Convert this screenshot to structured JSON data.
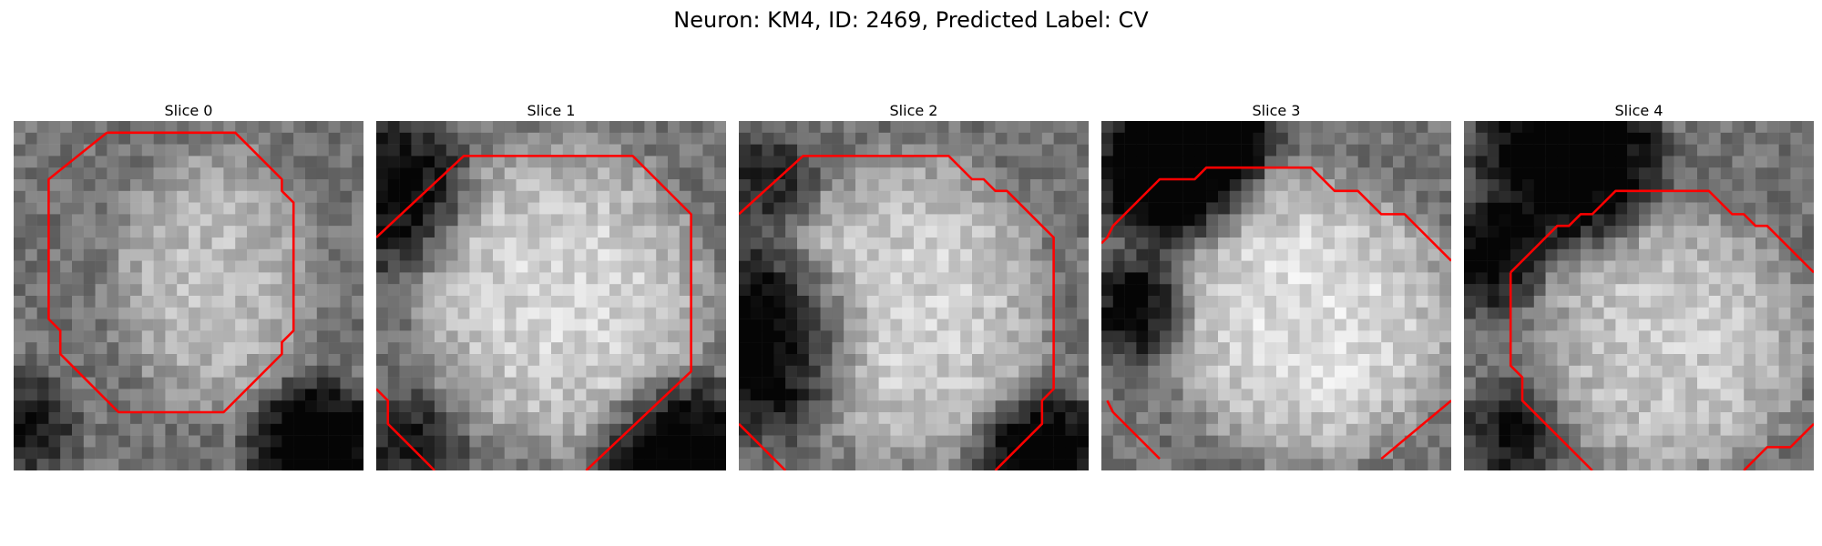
{
  "figure": {
    "title": "Neuron: KM4, ID: 2469, Predicted Label: CV"
  },
  "panels": [
    {
      "title": "Slice 0",
      "blob": {
        "cx": 17.0,
        "cy": 13.5,
        "rx": 10.0,
        "ry": 13.0,
        "bright": 0.74
      },
      "dark": [
        {
          "cx": 26,
          "cy": 28,
          "r": 5,
          "a": 0.6
        },
        {
          "cx": 1,
          "cy": 26,
          "r": 4,
          "a": 0.35
        }
      ],
      "contours": [
        [
          [
            8.0,
            1.0
          ],
          [
            19.0,
            1.0
          ],
          [
            23.0,
            5.0
          ],
          [
            23.0,
            6.0
          ],
          [
            24.0,
            7.0
          ],
          [
            24.0,
            18.0
          ],
          [
            23.0,
            19.0
          ],
          [
            23.0,
            20.0
          ],
          [
            21.0,
            22.0
          ],
          [
            18.0,
            25.0
          ],
          [
            9.0,
            25.0
          ],
          [
            5.0,
            21.0
          ],
          [
            4.0,
            20.0
          ],
          [
            4.0,
            18.0
          ],
          [
            3.0,
            17.0
          ],
          [
            3.0,
            5.0
          ],
          [
            8.0,
            1.0
          ]
        ]
      ]
    },
    {
      "title": "Slice 1",
      "blob": {
        "cx": 16.0,
        "cy": 15.0,
        "rx": 14.0,
        "ry": 15.0,
        "bright": 0.84
      },
      "dark": [
        {
          "cx": 1,
          "cy": 6,
          "r": 6,
          "a": 0.45
        },
        {
          "cx": 26,
          "cy": 29,
          "r": 6,
          "a": 0.55
        },
        {
          "cx": 3,
          "cy": 28,
          "r": 4,
          "a": 0.35
        }
      ],
      "contours": [
        [
          [
            0.0,
            10.0
          ],
          [
            7.5,
            3.0
          ],
          [
            22.0,
            3.0
          ],
          [
            27.0,
            8.0
          ],
          [
            27.0,
            21.5
          ],
          [
            18.0,
            30.0
          ]
        ],
        [
          [
            0.0,
            23.0
          ],
          [
            1.0,
            24.0
          ],
          [
            1.0,
            26.0
          ],
          [
            5.0,
            30.0
          ]
        ]
      ]
    },
    {
      "title": "Slice 2",
      "blob": {
        "cx": 15.0,
        "cy": 16.0,
        "rx": 13.0,
        "ry": 15.0,
        "bright": 0.82
      },
      "dark": [
        {
          "cx": 2,
          "cy": 19,
          "r": 7,
          "a": 0.55
        },
        {
          "cx": 26,
          "cy": 29,
          "r": 5,
          "a": 0.55
        },
        {
          "cx": 2,
          "cy": 5,
          "r": 4,
          "a": 0.3
        }
      ],
      "contours": [
        [
          [
            0.0,
            8.0
          ],
          [
            5.5,
            3.0
          ],
          [
            18.0,
            3.0
          ],
          [
            20.0,
            5.0
          ],
          [
            21.0,
            5.0
          ],
          [
            22.0,
            6.0
          ],
          [
            23.0,
            6.0
          ],
          [
            27.0,
            10.0
          ],
          [
            27.0,
            23.0
          ],
          [
            26.0,
            24.0
          ],
          [
            26.0,
            26.0
          ],
          [
            22.0,
            30.0
          ]
        ],
        [
          [
            0.0,
            26.0
          ],
          [
            4.0,
            30.0
          ]
        ]
      ]
    },
    {
      "title": "Slice 3",
      "blob": {
        "cx": 18.0,
        "cy": 17.0,
        "rx": 14.0,
        "ry": 14.0,
        "bright": 0.88
      },
      "dark": [
        {
          "cx": 6,
          "cy": 4,
          "r": 6,
          "a": 0.65
        },
        {
          "cx": 3,
          "cy": 16,
          "r": 4,
          "a": 0.45
        },
        {
          "cx": 12,
          "cy": 1,
          "r": 3,
          "a": 0.4
        }
      ],
      "contours": [
        [
          [
            0.0,
            10.5
          ],
          [
            0.5,
            10.0
          ],
          [
            1.0,
            9.0
          ],
          [
            5.0,
            5.0
          ],
          [
            8.0,
            5.0
          ],
          [
            9.0,
            4.0
          ],
          [
            18.0,
            4.0
          ],
          [
            20.0,
            6.0
          ],
          [
            22.0,
            6.0
          ],
          [
            24.0,
            8.0
          ],
          [
            26.0,
            8.0
          ],
          [
            30.0,
            12.0
          ]
        ],
        [
          [
            0.5,
            24.0
          ],
          [
            1.0,
            25.0
          ],
          [
            5.0,
            29.0
          ]
        ],
        [
          [
            24.0,
            29.0
          ],
          [
            30.0,
            24.0
          ]
        ]
      ]
    },
    {
      "title": "Slice 4",
      "blob": {
        "cx": 18.0,
        "cy": 19.0,
        "rx": 13.0,
        "ry": 13.0,
        "bright": 0.8
      },
      "dark": [
        {
          "cx": 9,
          "cy": 3,
          "r": 7,
          "a": 0.6
        },
        {
          "cx": 2,
          "cy": 12,
          "r": 4,
          "a": 0.45
        },
        {
          "cx": 4,
          "cy": 27,
          "r": 4,
          "a": 0.35
        }
      ],
      "contours": [
        [
          [
            4.0,
            13.0
          ],
          [
            8.0,
            9.0
          ],
          [
            9.0,
            9.0
          ],
          [
            10.0,
            8.0
          ],
          [
            11.0,
            8.0
          ],
          [
            13.0,
            6.0
          ],
          [
            21.0,
            6.0
          ],
          [
            23.0,
            8.0
          ],
          [
            24.0,
            8.0
          ],
          [
            25.0,
            9.0
          ],
          [
            26.0,
            9.0
          ],
          [
            30.0,
            13.0
          ]
        ],
        [
          [
            4.0,
            13.0
          ],
          [
            4.0,
            21.0
          ],
          [
            5.0,
            22.0
          ],
          [
            5.0,
            24.0
          ],
          [
            11.0,
            30.0
          ]
        ],
        [
          [
            24.0,
            30.0
          ],
          [
            26.0,
            28.0
          ],
          [
            28.0,
            28.0
          ],
          [
            30.0,
            26.0
          ]
        ]
      ]
    }
  ]
}
